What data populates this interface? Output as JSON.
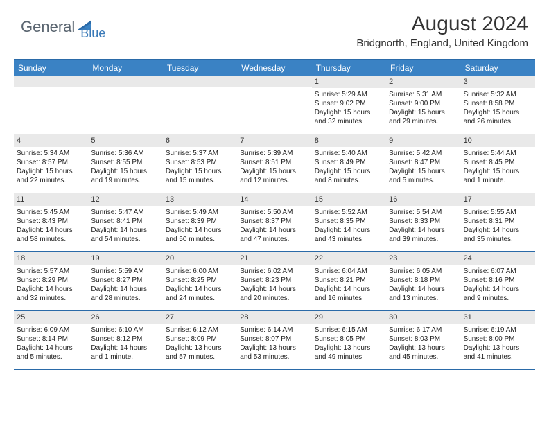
{
  "logo": {
    "text1": "General",
    "text2": "Blue"
  },
  "title": "August 2024",
  "location": "Bridgnorth, England, United Kingdom",
  "colors": {
    "header_bg": "#3a82c4",
    "border": "#2a6aa8",
    "daynum_bg": "#e9e9e9",
    "logo_gray": "#5a6570",
    "logo_blue": "#3a7ab8"
  },
  "day_headers": [
    "Sunday",
    "Monday",
    "Tuesday",
    "Wednesday",
    "Thursday",
    "Friday",
    "Saturday"
  ],
  "weeks": [
    [
      {
        "n": "",
        "sr": "",
        "ss": "",
        "dl": ""
      },
      {
        "n": "",
        "sr": "",
        "ss": "",
        "dl": ""
      },
      {
        "n": "",
        "sr": "",
        "ss": "",
        "dl": ""
      },
      {
        "n": "",
        "sr": "",
        "ss": "",
        "dl": ""
      },
      {
        "n": "1",
        "sr": "Sunrise: 5:29 AM",
        "ss": "Sunset: 9:02 PM",
        "dl": "Daylight: 15 hours and 32 minutes."
      },
      {
        "n": "2",
        "sr": "Sunrise: 5:31 AM",
        "ss": "Sunset: 9:00 PM",
        "dl": "Daylight: 15 hours and 29 minutes."
      },
      {
        "n": "3",
        "sr": "Sunrise: 5:32 AM",
        "ss": "Sunset: 8:58 PM",
        "dl": "Daylight: 15 hours and 26 minutes."
      }
    ],
    [
      {
        "n": "4",
        "sr": "Sunrise: 5:34 AM",
        "ss": "Sunset: 8:57 PM",
        "dl": "Daylight: 15 hours and 22 minutes."
      },
      {
        "n": "5",
        "sr": "Sunrise: 5:36 AM",
        "ss": "Sunset: 8:55 PM",
        "dl": "Daylight: 15 hours and 19 minutes."
      },
      {
        "n": "6",
        "sr": "Sunrise: 5:37 AM",
        "ss": "Sunset: 8:53 PM",
        "dl": "Daylight: 15 hours and 15 minutes."
      },
      {
        "n": "7",
        "sr": "Sunrise: 5:39 AM",
        "ss": "Sunset: 8:51 PM",
        "dl": "Daylight: 15 hours and 12 minutes."
      },
      {
        "n": "8",
        "sr": "Sunrise: 5:40 AM",
        "ss": "Sunset: 8:49 PM",
        "dl": "Daylight: 15 hours and 8 minutes."
      },
      {
        "n": "9",
        "sr": "Sunrise: 5:42 AM",
        "ss": "Sunset: 8:47 PM",
        "dl": "Daylight: 15 hours and 5 minutes."
      },
      {
        "n": "10",
        "sr": "Sunrise: 5:44 AM",
        "ss": "Sunset: 8:45 PM",
        "dl": "Daylight: 15 hours and 1 minute."
      }
    ],
    [
      {
        "n": "11",
        "sr": "Sunrise: 5:45 AM",
        "ss": "Sunset: 8:43 PM",
        "dl": "Daylight: 14 hours and 58 minutes."
      },
      {
        "n": "12",
        "sr": "Sunrise: 5:47 AM",
        "ss": "Sunset: 8:41 PM",
        "dl": "Daylight: 14 hours and 54 minutes."
      },
      {
        "n": "13",
        "sr": "Sunrise: 5:49 AM",
        "ss": "Sunset: 8:39 PM",
        "dl": "Daylight: 14 hours and 50 minutes."
      },
      {
        "n": "14",
        "sr": "Sunrise: 5:50 AM",
        "ss": "Sunset: 8:37 PM",
        "dl": "Daylight: 14 hours and 47 minutes."
      },
      {
        "n": "15",
        "sr": "Sunrise: 5:52 AM",
        "ss": "Sunset: 8:35 PM",
        "dl": "Daylight: 14 hours and 43 minutes."
      },
      {
        "n": "16",
        "sr": "Sunrise: 5:54 AM",
        "ss": "Sunset: 8:33 PM",
        "dl": "Daylight: 14 hours and 39 minutes."
      },
      {
        "n": "17",
        "sr": "Sunrise: 5:55 AM",
        "ss": "Sunset: 8:31 PM",
        "dl": "Daylight: 14 hours and 35 minutes."
      }
    ],
    [
      {
        "n": "18",
        "sr": "Sunrise: 5:57 AM",
        "ss": "Sunset: 8:29 PM",
        "dl": "Daylight: 14 hours and 32 minutes."
      },
      {
        "n": "19",
        "sr": "Sunrise: 5:59 AM",
        "ss": "Sunset: 8:27 PM",
        "dl": "Daylight: 14 hours and 28 minutes."
      },
      {
        "n": "20",
        "sr": "Sunrise: 6:00 AM",
        "ss": "Sunset: 8:25 PM",
        "dl": "Daylight: 14 hours and 24 minutes."
      },
      {
        "n": "21",
        "sr": "Sunrise: 6:02 AM",
        "ss": "Sunset: 8:23 PM",
        "dl": "Daylight: 14 hours and 20 minutes."
      },
      {
        "n": "22",
        "sr": "Sunrise: 6:04 AM",
        "ss": "Sunset: 8:21 PM",
        "dl": "Daylight: 14 hours and 16 minutes."
      },
      {
        "n": "23",
        "sr": "Sunrise: 6:05 AM",
        "ss": "Sunset: 8:18 PM",
        "dl": "Daylight: 14 hours and 13 minutes."
      },
      {
        "n": "24",
        "sr": "Sunrise: 6:07 AM",
        "ss": "Sunset: 8:16 PM",
        "dl": "Daylight: 14 hours and 9 minutes."
      }
    ],
    [
      {
        "n": "25",
        "sr": "Sunrise: 6:09 AM",
        "ss": "Sunset: 8:14 PM",
        "dl": "Daylight: 14 hours and 5 minutes."
      },
      {
        "n": "26",
        "sr": "Sunrise: 6:10 AM",
        "ss": "Sunset: 8:12 PM",
        "dl": "Daylight: 14 hours and 1 minute."
      },
      {
        "n": "27",
        "sr": "Sunrise: 6:12 AM",
        "ss": "Sunset: 8:09 PM",
        "dl": "Daylight: 13 hours and 57 minutes."
      },
      {
        "n": "28",
        "sr": "Sunrise: 6:14 AM",
        "ss": "Sunset: 8:07 PM",
        "dl": "Daylight: 13 hours and 53 minutes."
      },
      {
        "n": "29",
        "sr": "Sunrise: 6:15 AM",
        "ss": "Sunset: 8:05 PM",
        "dl": "Daylight: 13 hours and 49 minutes."
      },
      {
        "n": "30",
        "sr": "Sunrise: 6:17 AM",
        "ss": "Sunset: 8:03 PM",
        "dl": "Daylight: 13 hours and 45 minutes."
      },
      {
        "n": "31",
        "sr": "Sunrise: 6:19 AM",
        "ss": "Sunset: 8:00 PM",
        "dl": "Daylight: 13 hours and 41 minutes."
      }
    ]
  ]
}
